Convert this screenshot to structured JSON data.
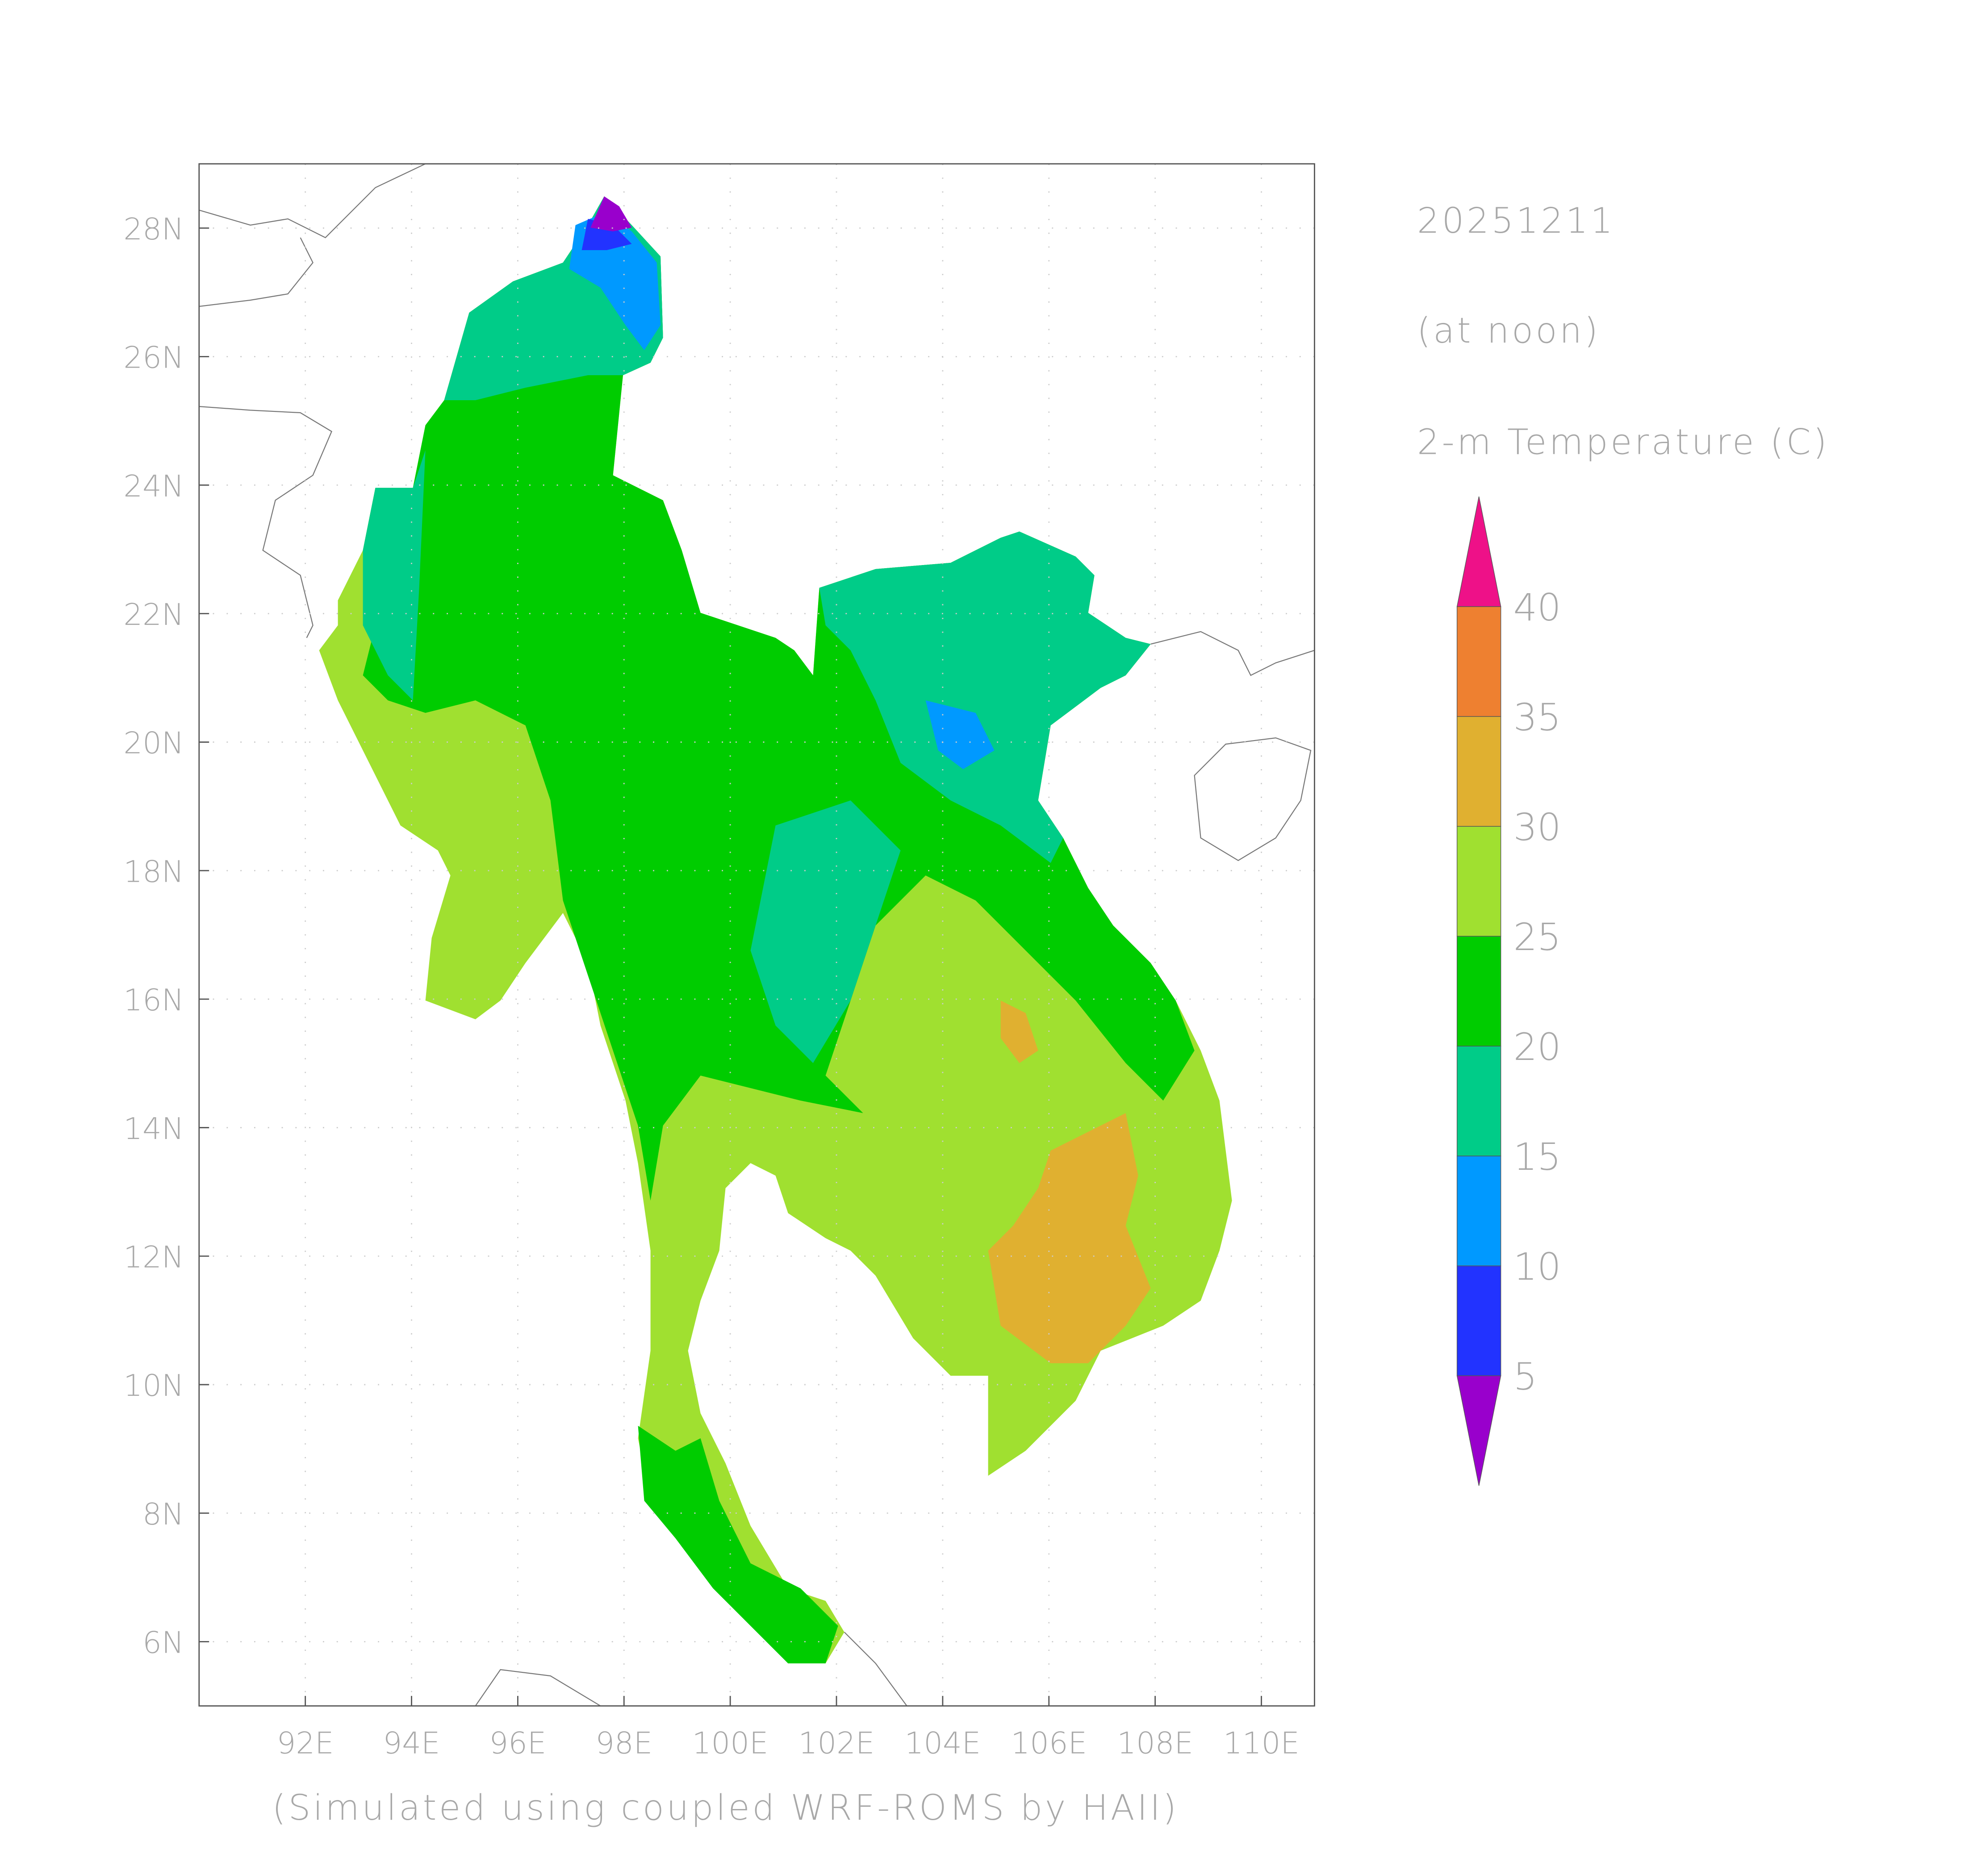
{
  "header": {
    "date": "20251211",
    "time": "(at noon)",
    "variable": "2-m Temperature (C)"
  },
  "footer": "(Simulated using coupled WRF-ROMS by HAII)",
  "chart_data": {
    "type": "map",
    "xlim": [
      90,
      111
    ],
    "ylim": [
      5,
      29
    ],
    "xticks": [
      {
        "value": 92,
        "label": "92E"
      },
      {
        "value": 94,
        "label": "94E"
      },
      {
        "value": 96,
        "label": "96E"
      },
      {
        "value": 98,
        "label": "98E"
      },
      {
        "value": 100,
        "label": "100E"
      },
      {
        "value": 102,
        "label": "102E"
      },
      {
        "value": 104,
        "label": "104E"
      },
      {
        "value": 106,
        "label": "106E"
      },
      {
        "value": 108,
        "label": "108E"
      },
      {
        "value": 110,
        "label": "110E"
      }
    ],
    "yticks": [
      {
        "value": 6,
        "label": "6N"
      },
      {
        "value": 8,
        "label": "8N"
      },
      {
        "value": 10,
        "label": "10N"
      },
      {
        "value": 12,
        "label": "12N"
      },
      {
        "value": 14,
        "label": "14N"
      },
      {
        "value": 16,
        "label": "16N"
      },
      {
        "value": 18,
        "label": "18N"
      },
      {
        "value": 20,
        "label": "20N"
      },
      {
        "value": 22,
        "label": "22N"
      },
      {
        "value": 24,
        "label": "24N"
      },
      {
        "value": 26,
        "label": "26N"
      },
      {
        "value": 28,
        "label": "28N"
      }
    ],
    "grid": true,
    "colorbar": {
      "levels": [
        5,
        10,
        15,
        20,
        25,
        30,
        35,
        40
      ],
      "colors": [
        "#9900cc",
        "#2233ff",
        "#0099ff",
        "#00cc88",
        "#00cc00",
        "#a0e030",
        "#e0b030",
        "#ee8030",
        "#ee1188"
      ]
    }
  }
}
